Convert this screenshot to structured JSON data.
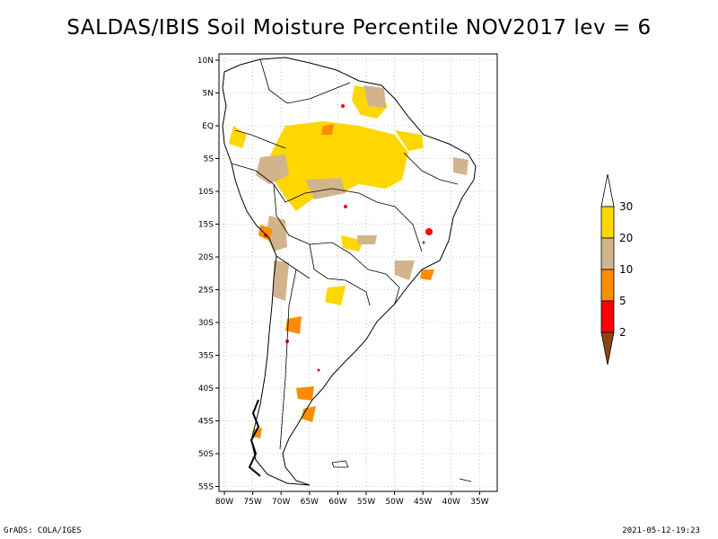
{
  "title": "SALDAS/IBIS Soil Moisture Percentile NOV2017 lev = 6",
  "footer": {
    "left": "GrADS: COLA/IGES",
    "right": "2021-05-12-19:23"
  },
  "map": {
    "lat_labels": [
      "10N",
      "5N",
      "EQ",
      "5S",
      "10S",
      "15S",
      "20S",
      "25S",
      "30S",
      "35S",
      "40S",
      "45S",
      "50S",
      "55S"
    ],
    "lon_labels": [
      "80W",
      "75W",
      "70W",
      "65W",
      "60W",
      "55W",
      "50W",
      "45W",
      "40W",
      "35W"
    ]
  },
  "legend": {
    "levels": [
      "2",
      "5",
      "10",
      "20",
      "30"
    ],
    "colors": [
      "#8b4513",
      "#ff0000",
      "#ff8c00",
      "#d2b48c",
      "#ffd700",
      "#ffffff"
    ]
  }
}
